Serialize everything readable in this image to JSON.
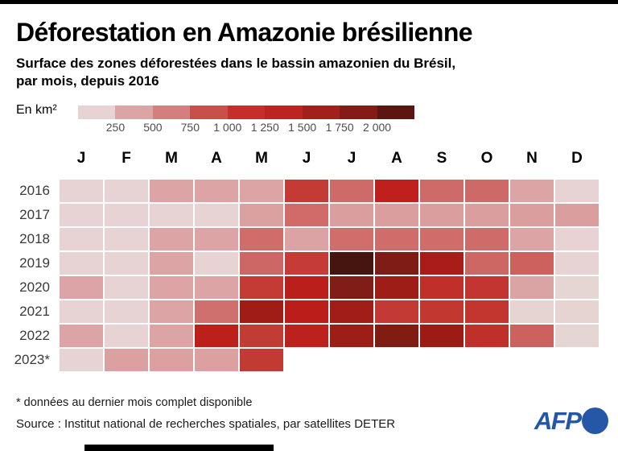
{
  "header": {
    "title": "Déforestation en Amazonie brésilienne",
    "subtitle_line1": "Surface des zones déforestées dans le bassin amazonien du Brésil,",
    "subtitle_line2": "par mois, depuis 2016",
    "unit_label": "En km²"
  },
  "chart_data": {
    "type": "heatmap",
    "title": "Déforestation en Amazonie brésilienne",
    "subtitle": "Surface des zones déforestées dans le bassin amazonien du Brésil, par mois, depuis 2016",
    "unit": "km²",
    "months": [
      "J",
      "F",
      "M",
      "A",
      "M",
      "J",
      "J",
      "A",
      "S",
      "O",
      "N",
      "D"
    ],
    "legend": {
      "tick_labels": [
        "250",
        "500",
        "750",
        "1 000",
        "1 250",
        "1 500",
        "1 750",
        "2 000"
      ],
      "colors": [
        "#e7d3d4",
        "#dda4a5",
        "#d47e7d",
        "#c94f4b",
        "#c52f2a",
        "#bb2420",
        "#a2201c",
        "#841b16",
        "#5c1511"
      ],
      "ranges_km2": [
        "0-250",
        "250-500",
        "500-750",
        "750-1000",
        "1000-1250",
        "1250-1500",
        "1500-1750",
        "1750-2000",
        "2000+"
      ]
    },
    "rows": [
      {
        "year": "2016",
        "label": "2016",
        "values": [
          150,
          150,
          350,
          350,
          400,
          1100,
          750,
          1300,
          750,
          750,
          350,
          150
        ],
        "colors": [
          "#e7d3d4",
          "#e7d3d4",
          "#dda4a5",
          "#dda4a5",
          "#dda4a5",
          "#c43b36",
          "#cd6b68",
          "#bf201d",
          "#cd6b68",
          "#cd6967",
          "#dda4a5",
          "#e7d3d4"
        ]
      },
      {
        "year": "2017",
        "label": "2017",
        "values": [
          150,
          150,
          150,
          150,
          350,
          600,
          400,
          400,
          400,
          400,
          400,
          400
        ],
        "colors": [
          "#e7d3d4",
          "#e7d3d4",
          "#e7d3d4",
          "#e7d3d4",
          "#dba1a1",
          "#d06b69",
          "#db9e9e",
          "#db9e9e",
          "#db9e9e",
          "#db9e9e",
          "#db9e9e",
          "#db9e9e"
        ]
      },
      {
        "year": "2018",
        "label": "2018",
        "values": [
          150,
          150,
          350,
          350,
          600,
          400,
          600,
          600,
          600,
          600,
          350,
          150
        ],
        "colors": [
          "#e7d3d4",
          "#e7d3d4",
          "#dda4a5",
          "#dda4a5",
          "#d06d6b",
          "#dba3a3",
          "#d06e6c",
          "#d06c6a",
          "#d06d6b",
          "#cf6b69",
          "#dda4a5",
          "#e7d3d4"
        ]
      },
      {
        "year": "2019",
        "label": "2019",
        "values": [
          150,
          150,
          350,
          150,
          650,
          1050,
          2250,
          1850,
          1500,
          700,
          700,
          150
        ],
        "colors": [
          "#e7d3d4",
          "#e7d3d4",
          "#dda4a5",
          "#e7d3d4",
          "#cd6765",
          "#c53c37",
          "#471510",
          "#7e1c15",
          "#a81d18",
          "#cd6763",
          "#cc615e",
          "#e7d3d4"
        ]
      },
      {
        "year": "2020",
        "label": "2020",
        "values": [
          350,
          150,
          350,
          350,
          1050,
          1350,
          1800,
          1600,
          1200,
          1100,
          350,
          150
        ],
        "colors": [
          "#dca4a6",
          "#e7d3d4",
          "#dda4a5",
          "#dda4a5",
          "#c43b36",
          "#bb1f1b",
          "#7f1d16",
          "#9e1d16",
          "#c12f2a",
          "#c23530",
          "#dba4a4",
          "#e5d6d4"
        ]
      },
      {
        "year": "2021",
        "label": "2021",
        "values": [
          150,
          150,
          350,
          550,
          1550,
          1350,
          1550,
          1050,
          1100,
          1100,
          150,
          150
        ],
        "colors": [
          "#e7d3d4",
          "#e7d3d4",
          "#dda4a5",
          "#d0706e",
          "#9f1c17",
          "#bb1e1a",
          "#a11d18",
          "#c33a34",
          "#c23831",
          "#c2362f",
          "#e5d4d2",
          "#e5d4d2"
        ]
      },
      {
        "year": "2022",
        "label": "2022",
        "values": [
          350,
          150,
          350,
          1300,
          1050,
          1300,
          1550,
          1800,
          1600,
          1150,
          750,
          150
        ],
        "colors": [
          "#dca4a6",
          "#e7d3d4",
          "#dda4a5",
          "#bd1f1b",
          "#c33b35",
          "#bd211d",
          "#9d1d17",
          "#811c13",
          "#9c1c15",
          "#c0302a",
          "#cd615e",
          "#e5d6d4"
        ]
      },
      {
        "year": "2023",
        "label": "2023*",
        "values": [
          150,
          350,
          350,
          350,
          1100
        ],
        "colors": [
          "#e7d3d4",
          "#dba1a1",
          "#dba1a1",
          "#dba1a1",
          "#c23a34"
        ]
      }
    ],
    "layout": {
      "legend_position": "top",
      "grid": false,
      "x_axis": "months",
      "y_axis": "years"
    }
  },
  "footer": {
    "footnote": "* données au dernier mois complet disponible",
    "source": "Source : Institut national de recherches spatiales, par satellites DETER",
    "brand": "AFP",
    "brand_color": "#2457a5"
  }
}
